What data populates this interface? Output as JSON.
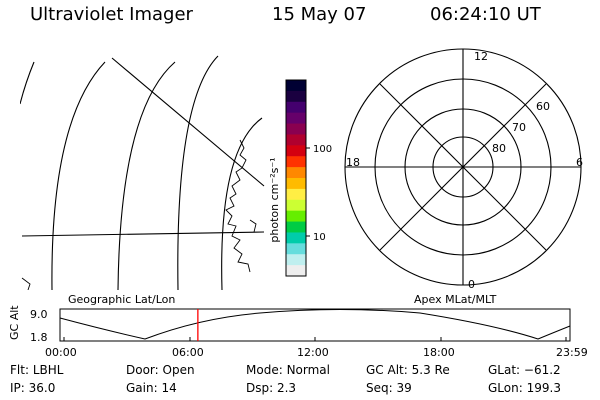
{
  "header": {
    "app_title": "Ultraviolet Imager",
    "date": "15 May 07",
    "time": "06:24:10 UT"
  },
  "colorbar": {
    "unit_label": "photon cm⁻²s⁻¹",
    "ticks": [
      "100",
      "10"
    ],
    "colors": [
      "#000033",
      "#1a0040",
      "#44006e",
      "#66006a",
      "#8a0050",
      "#b0002e",
      "#d40010",
      "#ff3300",
      "#ff8800",
      "#ffbb00",
      "#ffee44",
      "#ccff33",
      "#66ee00",
      "#00cc44",
      "#00ccaa",
      "#66dddd",
      "#bfefef",
      "#eeeeee"
    ]
  },
  "maps": {
    "left_label": "Geographic Lat/Lon",
    "right_label": "Apex MLat/MLT",
    "polar_mlt_labels": {
      "top": "12",
      "right": "6",
      "bottom": "0",
      "left": "18"
    },
    "polar_lat_labels": [
      "60",
      "70",
      "80"
    ]
  },
  "altitude_plot": {
    "y_label": "GC Alt",
    "y_ticks": [
      "9.0",
      "1.8"
    ],
    "x_ticks": [
      "00:00",
      "06:00",
      "12:00",
      "18:00",
      "23:59"
    ],
    "current_time_marker_hours": 6.4,
    "marker_color": "#ff0000"
  },
  "info_rows": [
    [
      {
        "label": "Flt:",
        "value": "LBHL"
      },
      {
        "label": "Door:",
        "value": "Open"
      },
      {
        "label": "Mode:",
        "value": "Normal"
      },
      {
        "label": "GC Alt:",
        "value": "5.3 Re"
      },
      {
        "label": "GLat:",
        "value": "−61.2"
      }
    ],
    [
      {
        "label": "IP:",
        "value": "36.0"
      },
      {
        "label": "Gain:",
        "value": "14"
      },
      {
        "label": "Dsp:",
        "value": "2.3"
      },
      {
        "label": "Seq:",
        "value": "39"
      },
      {
        "label": "GLon:",
        "value": "199.3"
      }
    ]
  ]
}
